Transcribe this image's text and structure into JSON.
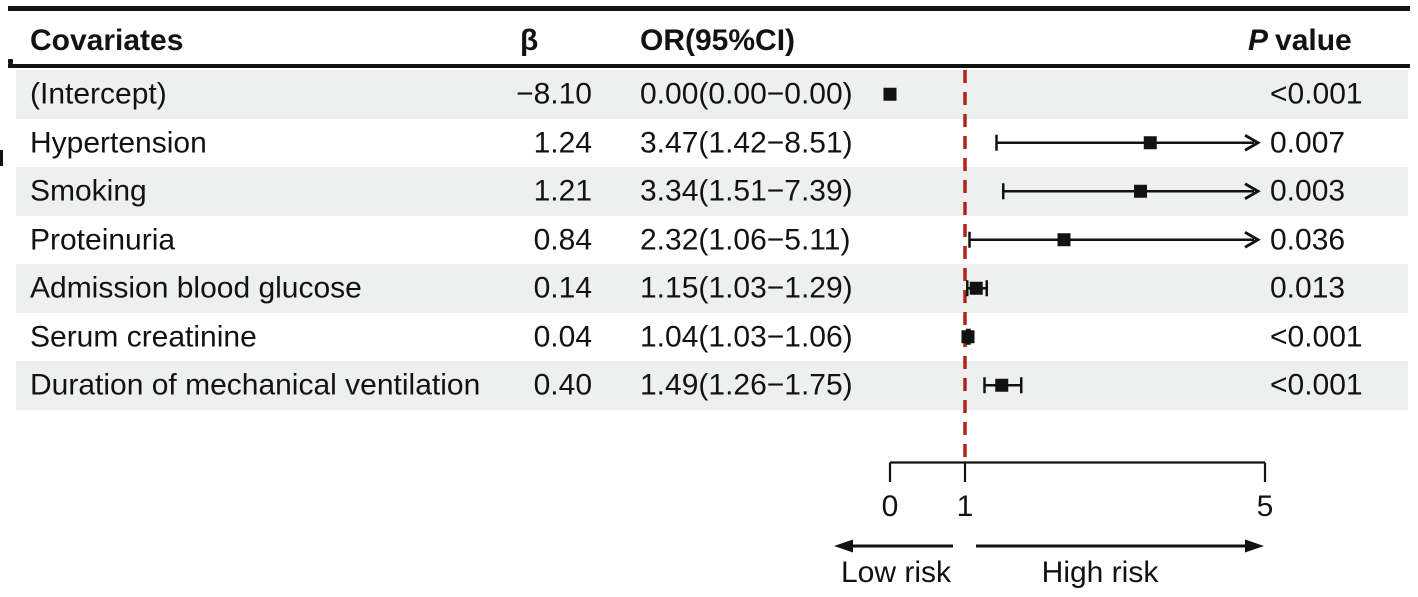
{
  "chart_data": {
    "type": "forest",
    "header": {
      "covariates": "Covariates",
      "beta": "β",
      "or_ci": "OR(95%CI)",
      "p_italic": "P",
      "p_rest": "value"
    },
    "rows": [
      {
        "covariate": "(Intercept)",
        "beta": "−8.10",
        "or_ci_label": "0.00(0.00−0.00)",
        "or": 0.0,
        "ci_low": 0.0,
        "ci_high": 0.0,
        "p": "<0.001"
      },
      {
        "covariate": "Hypertension",
        "beta": "1.24",
        "or_ci_label": "3.47(1.42−8.51)",
        "or": 3.47,
        "ci_low": 1.42,
        "ci_high": 8.51,
        "p": "0.007"
      },
      {
        "covariate": "Smoking",
        "beta": "1.21",
        "or_ci_label": "3.34(1.51−7.39)",
        "or": 3.34,
        "ci_low": 1.51,
        "ci_high": 7.39,
        "p": "0.003"
      },
      {
        "covariate": "Proteinuria",
        "beta": "0.84",
        "or_ci_label": "2.32(1.06−5.11)",
        "or": 2.32,
        "ci_low": 1.06,
        "ci_high": 5.11,
        "p": "0.036"
      },
      {
        "covariate": "Admission blood glucose",
        "beta": "0.14",
        "or_ci_label": "1.15(1.03−1.29)",
        "or": 1.15,
        "ci_low": 1.03,
        "ci_high": 1.29,
        "p": "0.013"
      },
      {
        "covariate": "Serum creatinine",
        "beta": "0.04",
        "or_ci_label": "1.04(1.03−1.06)",
        "or": 1.04,
        "ci_low": 1.03,
        "ci_high": 1.06,
        "p": "<0.001"
      },
      {
        "covariate": "Duration of mechanical ventilation",
        "beta": "0.40",
        "or_ci_label": "1.49(1.26−1.75)",
        "or": 1.49,
        "ci_low": 1.26,
        "ci_high": 1.75,
        "p": "<0.001"
      }
    ],
    "axis": {
      "ticks": [
        0,
        1,
        5
      ],
      "ref_line": 1,
      "clip_at": 5,
      "low_risk_label": "Low risk",
      "high_risk_label": "High risk"
    },
    "colors": {
      "stripe": "#eef0ef",
      "rule": "#121212",
      "text": "#121212",
      "marker": "#121212",
      "ref_line": "#b02419"
    }
  }
}
